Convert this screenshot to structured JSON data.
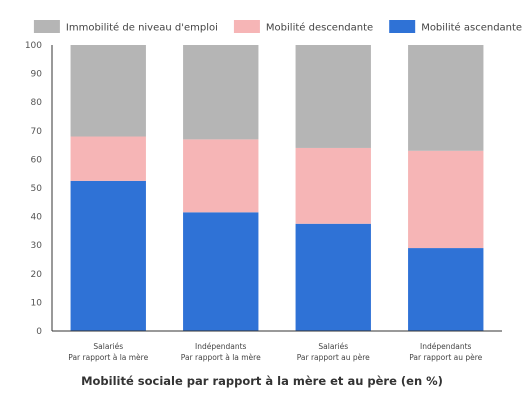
{
  "chart_data": {
    "type": "bar",
    "stacked": true,
    "title": "Mobilité sociale par rapport à la mère et au père (en %)",
    "categories": [
      [
        "Salariés",
        "Par rapport à la mère"
      ],
      [
        "Indépendants",
        "Par rapport à la mère"
      ],
      [
        "Salariés",
        "Par rapport au père"
      ],
      [
        "Indépendants",
        "Par rapport au père"
      ]
    ],
    "series": [
      {
        "name": "Mobilité ascendante",
        "color": "#2f72d6",
        "values": [
          52.5,
          41.5,
          37.5,
          29
        ]
      },
      {
        "name": "Mobilité descendante",
        "color": "#f6b5b6",
        "values": [
          15.5,
          25.5,
          26.5,
          34
        ]
      },
      {
        "name": "Immobilité de niveau d'emploi",
        "color": "#b5b5b5",
        "values": [
          32,
          33,
          36,
          37
        ]
      }
    ],
    "legend_order": [
      2,
      1,
      0
    ],
    "legend_position": "top",
    "ylim": [
      0,
      100
    ],
    "yticks": [
      "0",
      "10",
      "20",
      "30",
      "40",
      "50",
      "60",
      "70",
      "80",
      "90",
      "100"
    ],
    "grid": false
  }
}
